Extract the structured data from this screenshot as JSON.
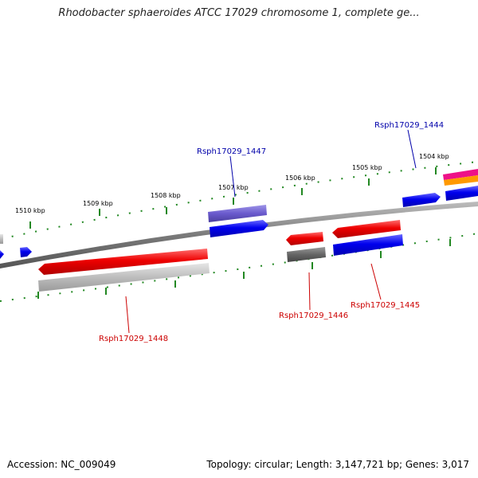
{
  "title": "Rhodobacter sphaeroides ATCC 17029 chromosome 1, complete ge...",
  "footer": {
    "accession": "Accession: NC_009049",
    "summary": "Topology: circular; Length: 3,147,721 bp; Genes: 3,017"
  },
  "kbp_ticks": [
    "1504 kbp",
    "1505 kbp",
    "1506 kbp",
    "1507 kbp",
    "1508 kbp",
    "1509 kbp",
    "1510 kbp"
  ],
  "gene_labels": {
    "g1444": "Rsph17029_1444",
    "g1445": "Rsph17029_1445",
    "g1446": "Rsph17029_1446",
    "g1447": "Rsph17029_1447",
    "g1448": "Rsph17029_1448"
  },
  "colors": {
    "backbone": "#7a7a7a",
    "tick": "#228822",
    "forward_gene": "#0000ee",
    "reverse_gene": "#ee0000",
    "label_forward": "#0000aa",
    "label_reverse": "#cc0000"
  }
}
